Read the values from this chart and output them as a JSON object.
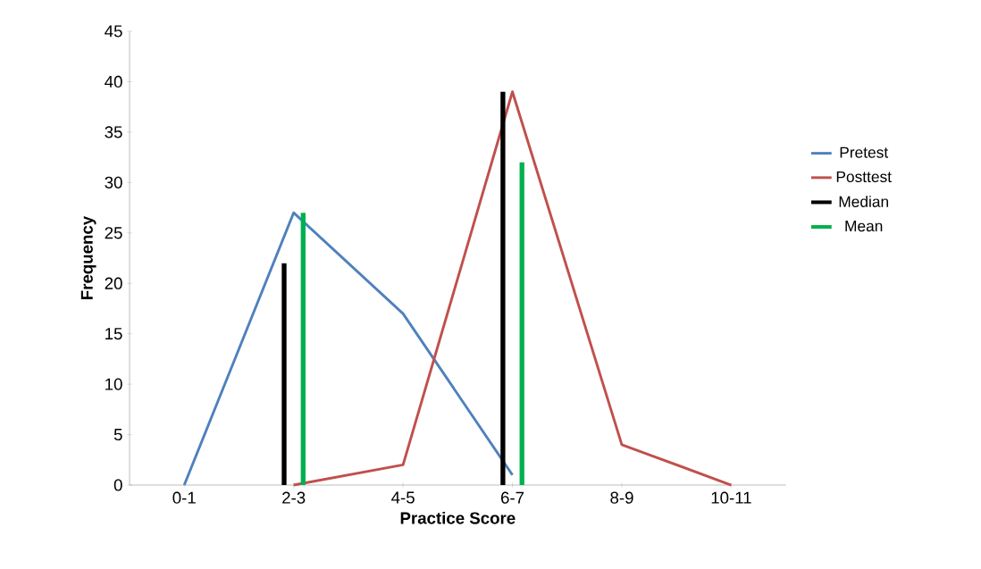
{
  "chart_data": {
    "type": "line",
    "xlabel": "Practice Score",
    "ylabel": "Frequency",
    "categories": [
      "0-1",
      "2-3",
      "4-5",
      "6-7",
      "8-9",
      "10-11"
    ],
    "series": [
      {
        "name": "Pretest",
        "color": "#4f81bd",
        "values": [
          0,
          27,
          17,
          1,
          null,
          null
        ]
      },
      {
        "name": "Posttest",
        "color": "#c0504d",
        "values": [
          null,
          0,
          2,
          39,
          4,
          0
        ]
      },
      {
        "name": "Median",
        "type": "bar",
        "color": "#000000",
        "values": [
          null,
          22,
          null,
          39,
          null,
          null
        ]
      },
      {
        "name": "Mean",
        "type": "bar",
        "color": "#00b050",
        "values": [
          null,
          27,
          null,
          32,
          null,
          null
        ]
      }
    ],
    "ylim": [
      0,
      45
    ],
    "yticks": [
      0,
      5,
      10,
      15,
      20,
      25,
      30,
      35,
      40,
      45
    ],
    "legend": "right"
  }
}
